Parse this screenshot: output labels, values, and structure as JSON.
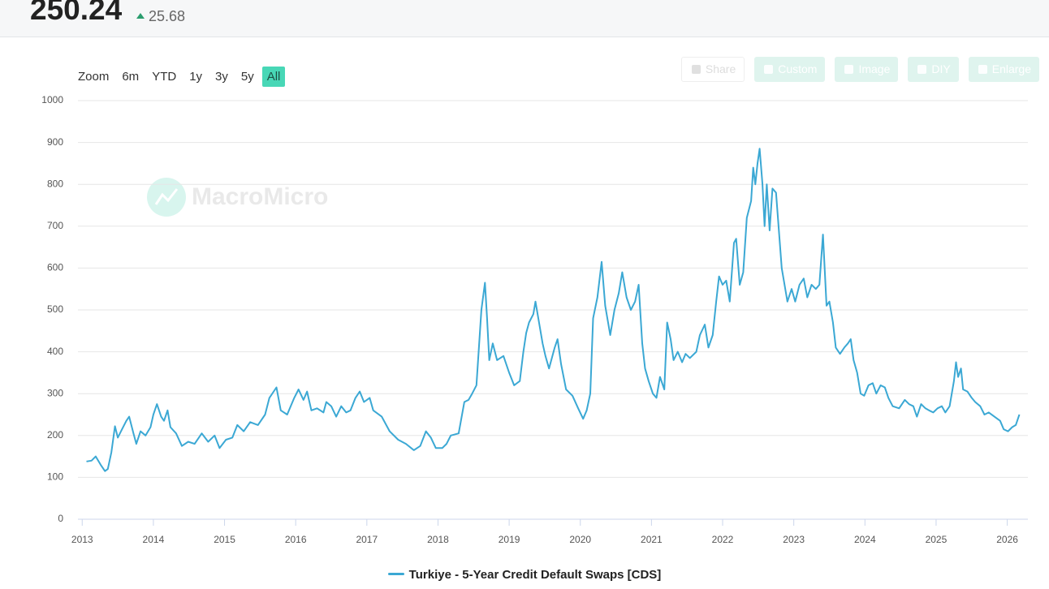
{
  "header": {
    "value": "250.24",
    "change": "25.68"
  },
  "zoom": {
    "label": "Zoom",
    "buttons": [
      "6m",
      "YTD",
      "1y",
      "3y",
      "5y",
      "All"
    ],
    "active": 5
  },
  "toolbar": [
    "Share",
    "Custom",
    "Image",
    "DIY",
    "Enlarge"
  ],
  "watermark": "MacroMicro",
  "chart_data": {
    "type": "line",
    "x": [
      2013.06,
      2013.13,
      2013.19,
      2013.26,
      2013.32,
      2013.36,
      2013.41,
      2013.46,
      2013.5,
      2013.56,
      2013.62,
      2013.66,
      2013.72,
      2013.76,
      2013.82,
      2013.89,
      2013.96,
      2014.0,
      2014.05,
      2014.11,
      2014.15,
      2014.2,
      2014.24,
      2014.32,
      2014.4,
      2014.49,
      2014.58,
      2014.68,
      2014.77,
      2014.86,
      2014.93,
      2015.02,
      2015.11,
      2015.18,
      2015.27,
      2015.36,
      2015.47,
      2015.57,
      2015.63,
      2015.73,
      2015.79,
      2015.88,
      2015.98,
      2016.04,
      2016.11,
      2016.16,
      2016.22,
      2016.3,
      2016.39,
      2016.43,
      2016.5,
      2016.57,
      2016.64,
      2016.71,
      2016.77,
      2016.84,
      2016.9,
      2016.96,
      2017.04,
      2017.09,
      2017.21,
      2017.32,
      2017.44,
      2017.55,
      2017.66,
      2017.75,
      2017.83,
      2017.9,
      2017.97,
      2018.06,
      2018.12,
      2018.18,
      2018.29,
      2018.37,
      2018.43,
      2018.48,
      2018.54,
      2018.61,
      2018.66,
      2018.69,
      2018.72,
      2018.77,
      2018.83,
      2018.92,
      2019.0,
      2019.07,
      2019.15,
      2019.2,
      2019.24,
      2019.28,
      2019.34,
      2019.37,
      2019.42,
      2019.47,
      2019.51,
      2019.56,
      2019.64,
      2019.68,
      2019.73,
      2019.8,
      2019.89,
      2019.97,
      2020.04,
      2020.09,
      2020.14,
      2020.18,
      2020.24,
      2020.3,
      2020.35,
      2020.42,
      2020.48,
      2020.54,
      2020.59,
      2020.65,
      2020.71,
      2020.77,
      2020.82,
      2020.87,
      2020.91,
      2020.96,
      2021.02,
      2021.07,
      2021.12,
      2021.18,
      2021.22,
      2021.27,
      2021.31,
      2021.37,
      2021.43,
      2021.48,
      2021.54,
      2021.63,
      2021.68,
      2021.75,
      2021.8,
      2021.86,
      2021.91,
      2021.95,
      2022.0,
      2022.05,
      2022.1,
      2022.16,
      2022.19,
      2022.24,
      2022.29,
      2022.34,
      2022.4,
      2022.43,
      2022.46,
      2022.49,
      2022.52,
      2022.56,
      2022.59,
      2022.62,
      2022.66,
      2022.7,
      2022.75,
      2022.79,
      2022.83,
      2022.87,
      2022.91,
      2022.97,
      2023.02,
      2023.08,
      2023.14,
      2023.19,
      2023.25,
      2023.31,
      2023.36,
      2023.41,
      2023.46,
      2023.5,
      2023.55,
      2023.59,
      2023.65,
      2023.71,
      2023.76,
      2023.8,
      2023.84,
      2023.89,
      2023.94,
      2023.99,
      2024.05,
      2024.11,
      2024.16,
      2024.22,
      2024.28,
      2024.33,
      2024.39,
      2024.48,
      2024.56,
      2024.62,
      2024.68,
      2024.73,
      2024.79,
      2024.85,
      2024.9,
      2024.96,
      2025.02,
      2025.08,
      2025.13,
      2025.19,
      2025.25,
      2025.28,
      2025.31,
      2025.35,
      2025.38,
      2025.44,
      2025.5,
      2025.55,
      2025.62,
      2025.68,
      2025.74,
      2025.82,
      2025.9,
      2025.95,
      2026.01,
      2026.07,
      2026.12,
      2026.17
    ],
    "series": [
      {
        "name": "Turkiye - 5-Year Credit Default Swaps [CDS]",
        "color": "#3ba8d4",
        "values": [
          138,
          140,
          150,
          130,
          115,
          120,
          160,
          222,
          195,
          215,
          235,
          245,
          205,
          180,
          210,
          200,
          220,
          250,
          275,
          245,
          235,
          260,
          220,
          205,
          175,
          185,
          180,
          205,
          185,
          200,
          170,
          190,
          195,
          225,
          210,
          232,
          225,
          250,
          290,
          315,
          260,
          250,
          290,
          310,
          285,
          305,
          260,
          265,
          255,
          280,
          270,
          245,
          270,
          255,
          260,
          290,
          305,
          280,
          290,
          260,
          245,
          210,
          190,
          180,
          165,
          175,
          210,
          195,
          170,
          170,
          180,
          200,
          205,
          280,
          285,
          300,
          320,
          500,
          565,
          480,
          380,
          420,
          380,
          390,
          350,
          320,
          330,
          400,
          445,
          470,
          490,
          520,
          470,
          420,
          390,
          360,
          410,
          430,
          370,
          310,
          295,
          265,
          240,
          260,
          300,
          480,
          530,
          615,
          510,
          440,
          500,
          540,
          590,
          530,
          500,
          520,
          560,
          420,
          360,
          330,
          300,
          290,
          340,
          310,
          470,
          430,
          380,
          400,
          375,
          395,
          385,
          400,
          440,
          465,
          410,
          440,
          520,
          580,
          560,
          570,
          520,
          660,
          670,
          560,
          590,
          720,
          760,
          840,
          800,
          850,
          885,
          800,
          700,
          800,
          690,
          790,
          780,
          690,
          600,
          560,
          520,
          550,
          520,
          560,
          575,
          530,
          560,
          550,
          560,
          680,
          510,
          520,
          470,
          410,
          395,
          410,
          420,
          430,
          380,
          350,
          300,
          295,
          320,
          325,
          300,
          320,
          315,
          290,
          270,
          265,
          285,
          275,
          270,
          245,
          275,
          265,
          260,
          255,
          265,
          270,
          255,
          270,
          330,
          375,
          340,
          360,
          310,
          305,
          290,
          280,
          270,
          250,
          255,
          245,
          235,
          215,
          210,
          220,
          225,
          250.24
        ]
      }
    ],
    "xlim": [
      2012.94,
      2026.29
    ],
    "xticks": [
      2013,
      2014,
      2015,
      2016,
      2017,
      2018,
      2019,
      2020,
      2021,
      2022,
      2023,
      2024,
      2025,
      2026
    ],
    "ylim": [
      0,
      1000
    ],
    "yticks": [
      0,
      100,
      200,
      300,
      400,
      500,
      600,
      700,
      800,
      900,
      1000
    ],
    "grid": true
  }
}
